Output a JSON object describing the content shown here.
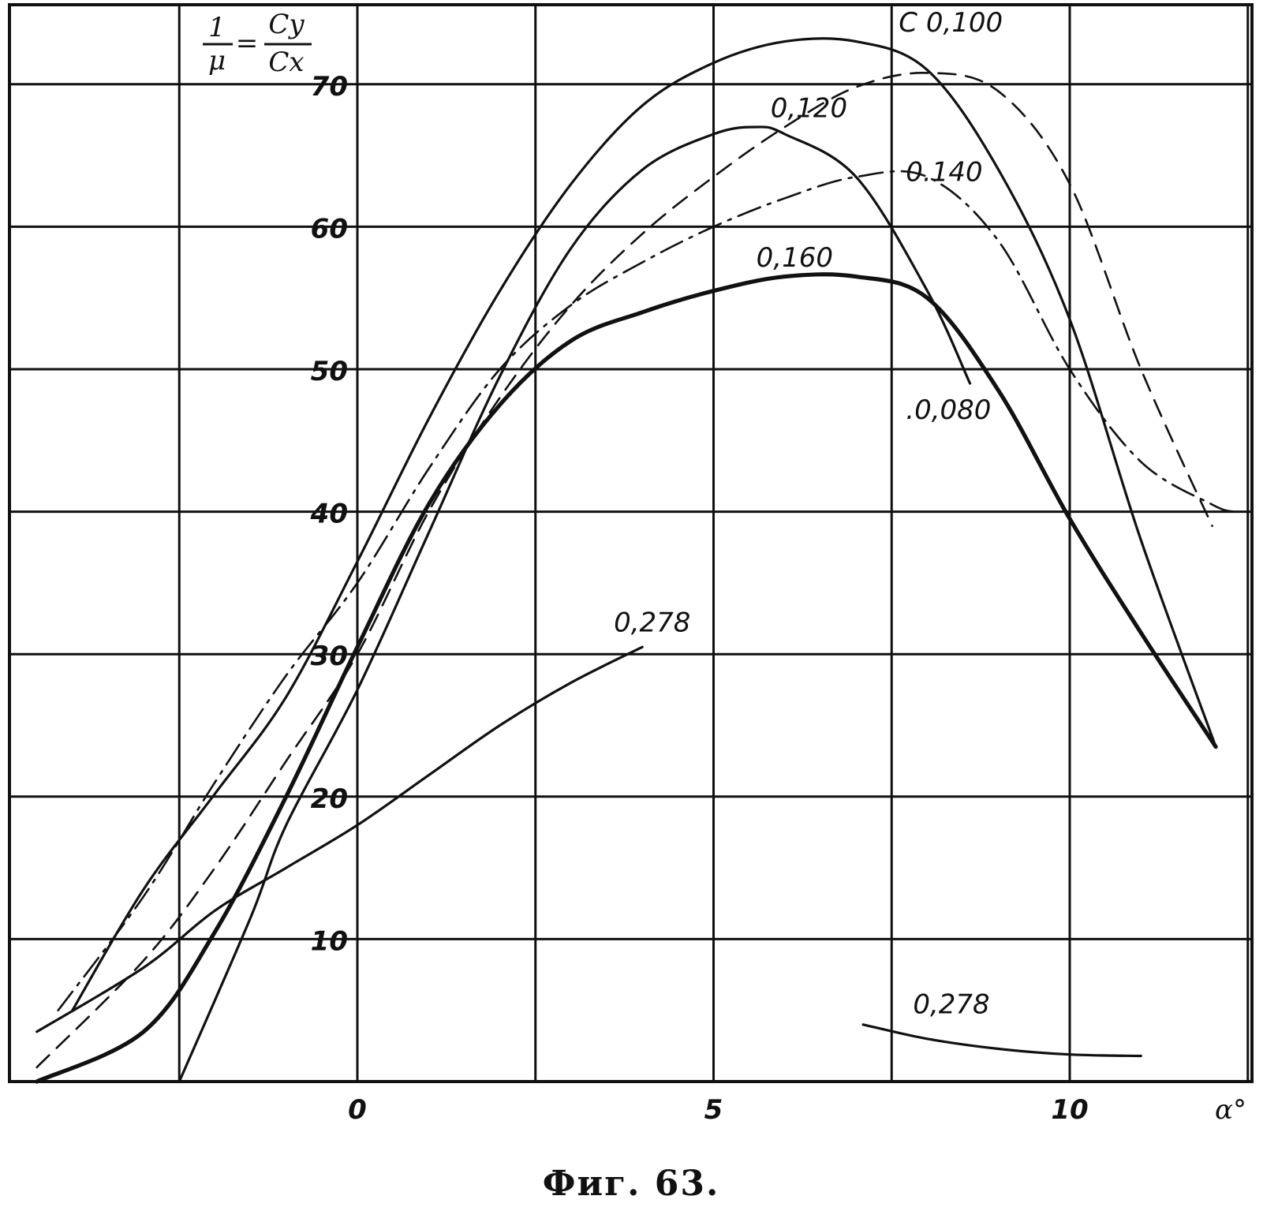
{
  "chart_data": {
    "type": "line",
    "xlabel": "α°",
    "ylabel_lhs": "1/μ",
    "ylabel_rhs_num": "Cy",
    "ylabel_rhs_den": "Cx",
    "xlim": [
      -4.8,
      12.6
    ],
    "ylim": [
      0,
      74
    ],
    "x_ticks": [
      {
        "value": 0,
        "label": "0"
      },
      {
        "value": 5,
        "label": "5"
      },
      {
        "value": 10,
        "label": "10"
      }
    ],
    "y_ticks": [
      {
        "value": 10,
        "label": "10"
      },
      {
        "value": 20,
        "label": "20"
      },
      {
        "value": 30,
        "label": "30"
      },
      {
        "value": 40,
        "label": "40"
      },
      {
        "value": 50,
        "label": "50"
      },
      {
        "value": 60,
        "label": "60"
      },
      {
        "value": 70,
        "label": "70"
      }
    ],
    "grid": true,
    "series": [
      {
        "name": "C 0,100",
        "style": "solid",
        "points": [
          [
            -4,
            5.0
          ],
          [
            -3,
            13.5
          ],
          [
            -2,
            20.2
          ],
          [
            -1,
            27.0
          ],
          [
            0,
            36.5
          ],
          [
            1,
            46.5
          ],
          [
            2,
            55.5
          ],
          [
            3,
            63.0
          ],
          [
            4,
            68.5
          ],
          [
            5,
            71.5
          ],
          [
            6,
            73.0
          ],
          [
            7,
            73.0
          ],
          [
            8,
            71.0
          ],
          [
            9,
            64.0
          ],
          [
            10,
            53.5
          ],
          [
            11,
            38.0
          ],
          [
            12.05,
            23.5
          ]
        ]
      },
      {
        "name": "0,080",
        "style": "solid",
        "points": [
          [
            -2.5,
            0.0
          ],
          [
            -1.5,
            11.5
          ],
          [
            -1,
            18.0
          ],
          [
            0,
            27.5
          ],
          [
            1,
            38.5
          ],
          [
            2,
            49.5
          ],
          [
            3,
            58.5
          ],
          [
            4,
            64.0
          ],
          [
            5,
            66.5
          ],
          [
            5.6,
            67.0
          ],
          [
            6,
            66.5
          ],
          [
            7,
            63.5
          ],
          [
            8,
            55.5
          ],
          [
            8.6,
            49.0
          ]
        ]
      },
      {
        "name": "0,120",
        "style": "dashed",
        "points": [
          [
            -4.5,
            1.0
          ],
          [
            -3,
            8.5
          ],
          [
            -2,
            15.0
          ],
          [
            -1,
            22.5
          ],
          [
            0,
            30.0
          ],
          [
            1,
            40.0
          ],
          [
            2,
            48.0
          ],
          [
            3,
            54.5
          ],
          [
            4,
            59.5
          ],
          [
            5,
            63.5
          ],
          [
            6,
            67.0
          ],
          [
            7,
            69.8
          ],
          [
            8,
            70.8
          ],
          [
            9,
            69.5
          ],
          [
            10,
            63.0
          ],
          [
            11,
            50.0
          ],
          [
            12,
            39.0
          ]
        ]
      },
      {
        "name": "0,140",
        "style": "dashdot",
        "points": [
          [
            -4.2,
            5.0
          ],
          [
            -3,
            13.0
          ],
          [
            -2,
            21.0
          ],
          [
            -1,
            28.5
          ],
          [
            0,
            35.0
          ],
          [
            1,
            43.0
          ],
          [
            2,
            50.0
          ],
          [
            3,
            54.5
          ],
          [
            4,
            57.5
          ],
          [
            5,
            60.0
          ],
          [
            6,
            62.0
          ],
          [
            7,
            63.5
          ],
          [
            8,
            63.5
          ],
          [
            9,
            59.0
          ],
          [
            10,
            50.0
          ],
          [
            11,
            43.5
          ],
          [
            12,
            40.5
          ],
          [
            12.3,
            40.0
          ]
        ]
      },
      {
        "name": "0,160",
        "style": "solid-bold",
        "points": [
          [
            -4.5,
            0.0
          ],
          [
            -3,
            3.5
          ],
          [
            -2,
            10.5
          ],
          [
            -1,
            20.0
          ],
          [
            0,
            30.5
          ],
          [
            1,
            40.5
          ],
          [
            2,
            47.5
          ],
          [
            3,
            52.0
          ],
          [
            4,
            54.0
          ],
          [
            5,
            55.5
          ],
          [
            6,
            56.5
          ],
          [
            7,
            56.5
          ],
          [
            8,
            55.0
          ],
          [
            9,
            48.5
          ],
          [
            10,
            39.5
          ],
          [
            11,
            31.5
          ],
          [
            12.05,
            23.5
          ]
        ]
      },
      {
        "name": "0,278",
        "style": "solid",
        "points": [
          [
            -4.5,
            3.5
          ],
          [
            -3,
            8.0
          ],
          [
            -2,
            12.0
          ],
          [
            -1,
            15.0
          ],
          [
            0,
            18.0
          ],
          [
            1,
            21.5
          ],
          [
            2,
            25.0
          ],
          [
            3,
            28.0
          ],
          [
            4,
            30.5
          ]
        ]
      },
      {
        "name": "0,278",
        "style": "solid",
        "points": [
          [
            7.1,
            4.0
          ],
          [
            8,
            3.0
          ],
          [
            9,
            2.3
          ],
          [
            10,
            1.9
          ],
          [
            11,
            1.8
          ]
        ]
      }
    ],
    "labels": [
      {
        "text": "C 0,100",
        "x": 7.6,
        "y": 73.7
      },
      {
        "text": "0,120",
        "x": 5.8,
        "y": 67.7
      },
      {
        "text": "0.140",
        "x": 7.7,
        "y": 63.2
      },
      {
        "text": "0,160",
        "x": 5.6,
        "y": 57.2
      },
      {
        "text": ".0,080",
        "x": 7.7,
        "y": 46.5
      },
      {
        "text": "0,278",
        "x": 3.6,
        "y": 31.6
      },
      {
        "text": "0,278",
        "x": 7.8,
        "y": 4.8
      }
    ]
  },
  "caption": "Фиг. 63."
}
